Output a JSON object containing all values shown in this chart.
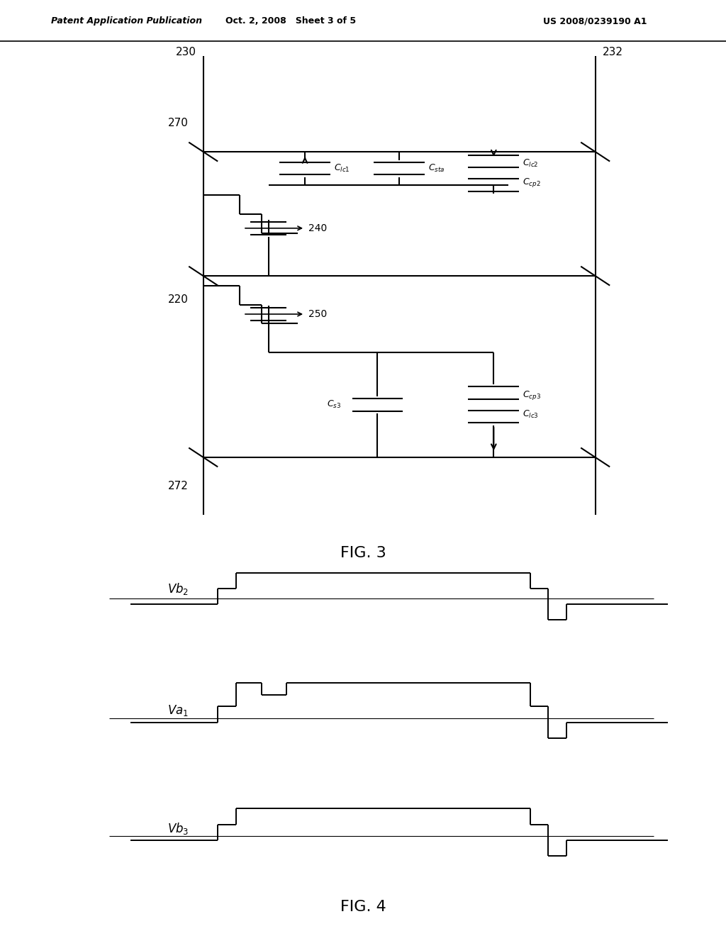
{
  "header_left": "Patent Application Publication",
  "header_mid": "Oct. 2, 2008   Sheet 3 of 5",
  "header_right": "US 2008/0239190 A1",
  "fig3_label": "FIG. 3",
  "fig4_label": "FIG. 4",
  "label_230": "230",
  "label_232": "232",
  "label_270": "270",
  "label_272": "272",
  "label_220": "220",
  "label_240": "240",
  "label_250": "250",
  "label_Clc1": "$C_{lc1}$",
  "label_Csta": "$C_{sta}$",
  "label_Clc2": "$C_{lc2}$",
  "label_Ccp2": "$C_{cp2}$",
  "label_Ccp3": "$C_{cp3}$",
  "label_Clc3": "$C_{lc3}$",
  "label_Cs3": "$C_{s3}$",
  "vb2_label": "$Vb_2$",
  "va1_label": "$Va_1$",
  "vb3_label": "$Vb_3$",
  "line_color": "#000000",
  "bg_color": "#ffffff"
}
